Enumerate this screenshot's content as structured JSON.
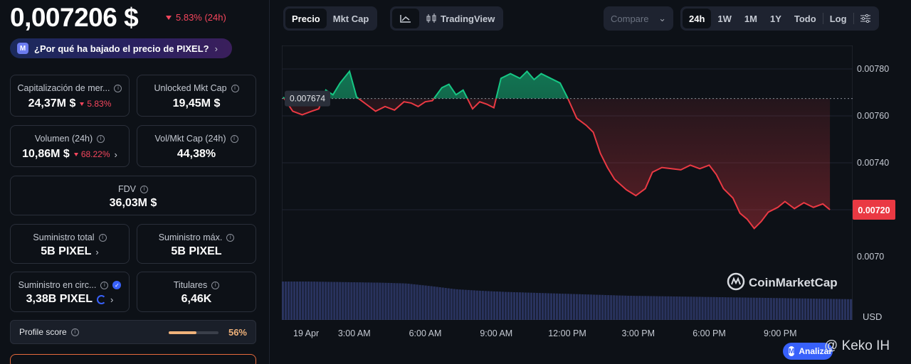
{
  "header": {
    "price": "0,007206 $",
    "change": "5.83% (24h)",
    "why_text": "¿Por qué ha bajado el precio de PIXEL?"
  },
  "stats": {
    "market_cap": {
      "label": "Capitalización de mer...",
      "value": "24,37M $",
      "change": "5.83%"
    },
    "unlocked": {
      "label": "Unlocked Mkt Cap",
      "value": "19,45M $"
    },
    "volume": {
      "label": "Volumen (24h)",
      "value": "10,86M $",
      "change": "68.22%"
    },
    "vol_mcap": {
      "label": "Vol/Mkt Cap (24h)",
      "value": "44,38%"
    },
    "fdv": {
      "label": "FDV",
      "value": "36,03M $"
    },
    "total_supply": {
      "label": "Suministro total",
      "value": "5B PIXEL"
    },
    "max_supply": {
      "label": "Suministro máx.",
      "value": "5B PIXEL"
    },
    "circ_supply": {
      "label": "Suministro en circ...",
      "value": "3,38B PIXEL"
    },
    "holders": {
      "label": "Titulares",
      "value": "6,46K"
    },
    "profile": {
      "label": "Profile score",
      "value": "56%",
      "fraction": 0.56
    }
  },
  "toolbar": {
    "price_tab": "Precio",
    "mktcap_tab": "Mkt Cap",
    "tradingview": "TradingView",
    "compare": "Compare",
    "ranges": [
      "24h",
      "1W",
      "1M",
      "1Y",
      "Todo"
    ],
    "log": "Log"
  },
  "chart_data": {
    "type": "line",
    "baseline_label": "0.007674",
    "current_label": "0.00720",
    "currency": "USD",
    "watermark": "CoinMarketCap",
    "ylim": [
      0.0069,
      0.0079
    ],
    "y_ticks": [
      "0.00780",
      "0.00760",
      "0.00740",
      "0.0070"
    ],
    "x_ticks": [
      "19 Apr",
      "3:00 AM",
      "6:00 AM",
      "9:00 AM",
      "12:00 PM",
      "3:00 PM",
      "6:00 PM",
      "9:00 PM"
    ],
    "baseline": 0.007674,
    "series": [
      [
        0,
        0.00768
      ],
      [
        0.4,
        0.00762
      ],
      [
        0.8,
        0.007605
      ],
      [
        1.2,
        0.00762
      ],
      [
        1.5,
        0.00763
      ],
      [
        1.8,
        0.00771
      ],
      [
        2.1,
        0.00769
      ],
      [
        2.4,
        0.00774
      ],
      [
        2.8,
        0.00779
      ],
      [
        3.1,
        0.00768
      ],
      [
        3.5,
        0.00765
      ],
      [
        3.9,
        0.00762
      ],
      [
        4.3,
        0.00764
      ],
      [
        4.7,
        0.007625
      ],
      [
        5.1,
        0.00766
      ],
      [
        5.4,
        0.007655
      ],
      [
        5.7,
        0.00764
      ],
      [
        6.0,
        0.00766
      ],
      [
        6.3,
        0.007665
      ],
      [
        6.7,
        0.00772
      ],
      [
        7.0,
        0.007735
      ],
      [
        7.3,
        0.00769
      ],
      [
        7.6,
        0.00771
      ],
      [
        8.0,
        0.00763
      ],
      [
        8.3,
        0.00766
      ],
      [
        8.6,
        0.00765
      ],
      [
        8.9,
        0.007635
      ],
      [
        9.2,
        0.00776
      ],
      [
        9.6,
        0.00778
      ],
      [
        10.0,
        0.00776
      ],
      [
        10.3,
        0.00779
      ],
      [
        10.6,
        0.007755
      ],
      [
        10.9,
        0.00778
      ],
      [
        11.3,
        0.00776
      ],
      [
        11.7,
        0.00774
      ],
      [
        12.0,
        0.00768
      ],
      [
        12.4,
        0.00759
      ],
      [
        12.8,
        0.00756
      ],
      [
        13.1,
        0.00753
      ],
      [
        13.4,
        0.00744
      ],
      [
        13.7,
        0.00738
      ],
      [
        14.0,
        0.00733
      ],
      [
        14.5,
        0.007285
      ],
      [
        14.9,
        0.00726
      ],
      [
        15.3,
        0.00729
      ],
      [
        15.6,
        0.00736
      ],
      [
        16.0,
        0.00738
      ],
      [
        16.4,
        0.007375
      ],
      [
        16.8,
        0.00737
      ],
      [
        17.2,
        0.00739
      ],
      [
        17.6,
        0.007375
      ],
      [
        18.0,
        0.00739
      ],
      [
        18.3,
        0.00735
      ],
      [
        18.6,
        0.00729
      ],
      [
        19.0,
        0.00725
      ],
      [
        19.3,
        0.007185
      ],
      [
        19.6,
        0.00716
      ],
      [
        19.9,
        0.00712
      ],
      [
        20.2,
        0.00715
      ],
      [
        20.5,
        0.00719
      ],
      [
        20.9,
        0.00721
      ],
      [
        21.2,
        0.007235
      ],
      [
        21.6,
        0.007205
      ],
      [
        22.0,
        0.00723
      ],
      [
        22.4,
        0.00721
      ],
      [
        22.8,
        0.007225
      ],
      [
        23.1,
        0.0072
      ]
    ],
    "volume_relative": [
      1.0,
      1.0,
      0.99,
      0.98,
      0.97,
      0.95,
      0.88,
      0.8,
      0.76,
      0.73,
      0.71,
      0.69,
      0.67,
      0.65,
      0.63,
      0.62,
      0.61,
      0.6,
      0.59,
      0.58,
      0.57,
      0.56,
      0.55,
      0.54
    ],
    "colors": {
      "up": "#16c784",
      "down": "#ea3943",
      "volume": "#2f3a6b"
    }
  },
  "overlay": {
    "analizar": "Analizar",
    "user_watermark": "@ Keko IH"
  }
}
